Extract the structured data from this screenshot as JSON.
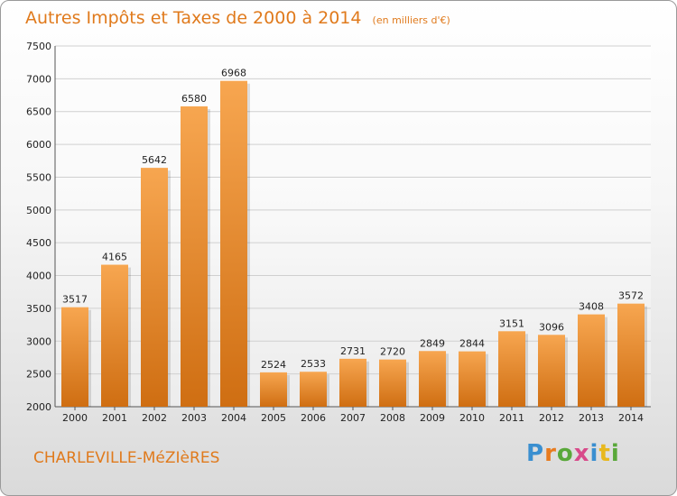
{
  "chart_data": {
    "type": "bar",
    "title": "Autres Impôts et Taxes de 2000 à 2014",
    "subtitle": "(en milliers d'€)",
    "categories": [
      "2000",
      "2001",
      "2002",
      "2003",
      "2004",
      "2005",
      "2006",
      "2007",
      "2008",
      "2009",
      "2010",
      "2011",
      "2012",
      "2013",
      "2014"
    ],
    "values": [
      3517,
      4165,
      5642,
      6580,
      6968,
      2524,
      2533,
      2731,
      2720,
      2849,
      2844,
      3151,
      3096,
      3408,
      3572
    ],
    "ylim": [
      2000,
      7500
    ],
    "yticks": [
      2000,
      2500,
      3000,
      3500,
      4000,
      4500,
      5000,
      5500,
      6000,
      6500,
      7000,
      7500
    ],
    "grid": true,
    "bar_color": "#f08a26"
  },
  "footer": {
    "city": "CHARLEVILLE-MéZIèRES",
    "brand": "Proxiti"
  },
  "colors": {
    "accent": "#e07a1c"
  }
}
